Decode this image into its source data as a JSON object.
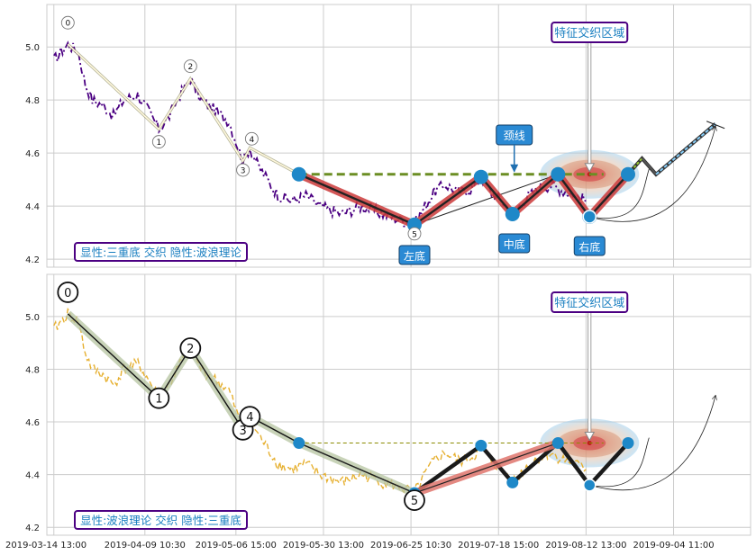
{
  "x_ticks": [
    "2019-03-14 13:00",
    "2019-04-09 10:30",
    "2019-05-06 15:00",
    "2019-05-30 13:00",
    "2019-06-25 10:30",
    "2019-07-18 15:00",
    "2019-08-12 13:00",
    "2019-09-04 11:00"
  ],
  "colors": {
    "grid": "#cccccc",
    "price_top": "#4b0082",
    "price_bottom": "#e6b030",
    "neckline_top": "#6b8e23",
    "neckline_bottom": "#8b8b00",
    "node": "#1e88c8",
    "label_border": "#4b0082",
    "label_text": "#1a7fc0",
    "tag_fill": "#2a8ad4"
  },
  "chart_data": [
    {
      "type": "line",
      "legend": "显性:三重底 交织 隐性:波浪理论",
      "ylim": [
        4.17,
        5.16
      ],
      "y_ticks": [
        4.2,
        4.4,
        4.6,
        4.8,
        5.0
      ],
      "feature_label": "特征交织区域",
      "neckline_label": "颈线",
      "bottom_labels": [
        "左底",
        "中底",
        "右底"
      ],
      "wave_labels": [
        "0",
        "1",
        "2",
        "3",
        "4",
        "5"
      ],
      "waves": [
        {
          "label": "0",
          "x": 4,
          "y": 5.01
        },
        {
          "label": "1",
          "x": 30,
          "y": 4.69
        },
        {
          "label": "2",
          "x": 39,
          "y": 4.88
        },
        {
          "label": "3",
          "x": 54,
          "y": 4.57
        },
        {
          "label": "4",
          "x": 56,
          "y": 4.62
        },
        {
          "label": "5",
          "x": 103,
          "y": 4.33
        }
      ],
      "pattern_points": [
        {
          "x": 70,
          "y": 4.52
        },
        {
          "x": 103,
          "y": 4.33
        },
        {
          "x": 122,
          "y": 4.51
        },
        {
          "x": 131,
          "y": 4.37
        },
        {
          "x": 144,
          "y": 4.52
        },
        {
          "x": 153,
          "y": 4.36
        },
        {
          "x": 164,
          "y": 4.52
        }
      ],
      "neckline": {
        "x1": 70,
        "x2": 157,
        "y": 4.52
      },
      "projection": [
        {
          "x": 164,
          "y": 4.52
        },
        {
          "x": 168,
          "y": 4.58
        },
        {
          "x": 172,
          "y": 4.52
        },
        {
          "x": 189,
          "y": 4.71
        }
      ]
    },
    {
      "type": "line",
      "legend": "显性:波浪理论 交织 隐性:三重底",
      "ylim": [
        4.17,
        5.16
      ],
      "y_ticks": [
        4.2,
        4.4,
        4.6,
        4.8,
        5.0
      ],
      "feature_label": "特征交织区域",
      "wave_labels": [
        "0",
        "1",
        "2",
        "3",
        "4",
        "5"
      ],
      "waves": [
        {
          "label": "0",
          "x": 4,
          "y": 5.01
        },
        {
          "label": "1",
          "x": 30,
          "y": 4.69
        },
        {
          "label": "2",
          "x": 39,
          "y": 4.88
        },
        {
          "label": "3",
          "x": 54,
          "y": 4.57
        },
        {
          "label": "4",
          "x": 56,
          "y": 4.62
        },
        {
          "label": "5",
          "x": 103,
          "y": 4.33
        }
      ],
      "pattern_points": [
        {
          "x": 70,
          "y": 4.52
        },
        {
          "x": 103,
          "y": 4.33
        },
        {
          "x": 122,
          "y": 4.51
        },
        {
          "x": 131,
          "y": 4.37
        },
        {
          "x": 144,
          "y": 4.52
        },
        {
          "x": 153,
          "y": 4.36
        },
        {
          "x": 164,
          "y": 4.52
        }
      ],
      "neckline": {
        "x1": 70,
        "x2": 157,
        "y": 4.52
      }
    }
  ]
}
